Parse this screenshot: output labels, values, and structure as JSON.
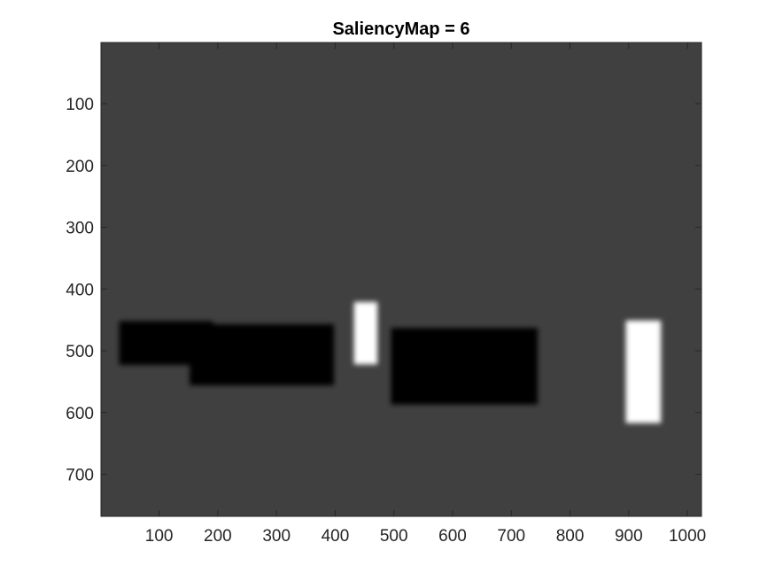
{
  "chart_data": {
    "type": "heatmap",
    "title": "SaliencyMap = 6",
    "xlabel": "",
    "ylabel": "",
    "colormap": "gray",
    "background_value": 0.25,
    "xlim": [
      1,
      1024
    ],
    "ylim": [
      1,
      768
    ],
    "y_reversed": true,
    "x_ticks": [
      100,
      200,
      300,
      400,
      500,
      600,
      700,
      800,
      900,
      1000
    ],
    "y_ticks": [
      100,
      200,
      300,
      400,
      500,
      600,
      700
    ],
    "regions": [
      {
        "x0": 32,
        "x1": 192,
        "y0": 452,
        "y1": 523,
        "value": 0.0
      },
      {
        "x0": 152,
        "x1": 398,
        "y0": 457,
        "y1": 556,
        "value": 0.0
      },
      {
        "x0": 432,
        "x1": 472,
        "y0": 421,
        "y1": 522,
        "value": 1.0
      },
      {
        "x0": 495,
        "x1": 745,
        "y0": 463,
        "y1": 587,
        "value": 0.0
      },
      {
        "x0": 895,
        "x1": 955,
        "y0": 451,
        "y1": 617,
        "value": 1.0
      }
    ],
    "grid": false,
    "legend": "none"
  },
  "colors": {
    "background": "#404040",
    "low": "#000000",
    "high": "#ffffff",
    "axis": "#262626"
  }
}
